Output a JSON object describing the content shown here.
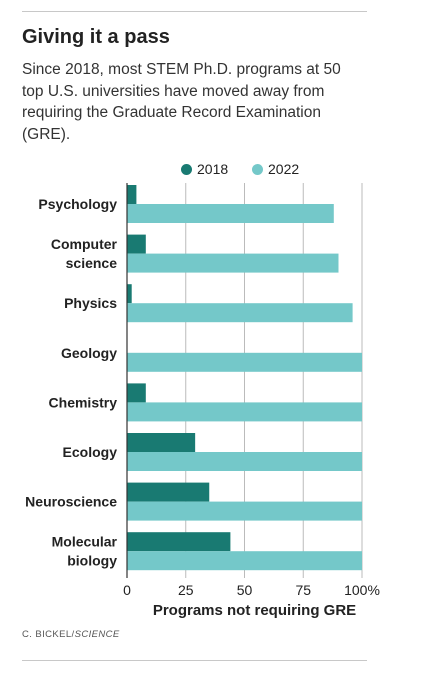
{
  "header": {
    "title": "Giving it a pass",
    "subtitle": "Since 2018, most STEM Ph.D. programs at 50 top U.S. universities have moved away from requiring the Graduate Record Examination (GRE)."
  },
  "credit": {
    "author": "C. BICKEL/",
    "source": "SCIENCE"
  },
  "colors": {
    "series_2018": "#197A72",
    "series_2022": "#74C8C9",
    "axis": "#333333",
    "grid": "#bbbbbb"
  },
  "chart_data": {
    "type": "bar",
    "orientation": "horizontal",
    "categories": [
      [
        "Psychology"
      ],
      [
        "Computer",
        "science"
      ],
      [
        "Physics"
      ],
      [
        "Geology"
      ],
      [
        "Chemistry"
      ],
      [
        "Ecology"
      ],
      [
        "Neuroscience"
      ],
      [
        "Molecular",
        "biology"
      ]
    ],
    "series": [
      {
        "name": "2018",
        "values": [
          4,
          8,
          2,
          0,
          8,
          29,
          35,
          44
        ]
      },
      {
        "name": "2022",
        "values": [
          88,
          90,
          96,
          100,
          100,
          100,
          100,
          100
        ]
      }
    ],
    "xlim": [
      0,
      100
    ],
    "xticks": [
      0,
      25,
      50,
      75,
      100
    ],
    "xtick_labels": [
      "0",
      "25",
      "50",
      "75",
      "100%"
    ],
    "xlabel": "Programs not requiring GRE",
    "grid": true,
    "legend": "top-center"
  }
}
